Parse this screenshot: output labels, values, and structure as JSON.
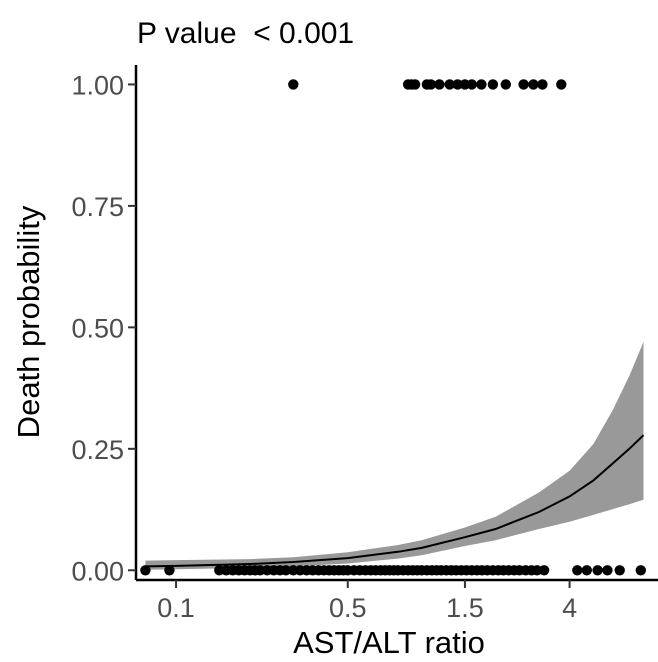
{
  "chart_data": {
    "type": "scatter",
    "title": "P value  < 0.001",
    "xlabel": "AST/ALT ratio",
    "ylabel": "Death probability",
    "x_scale": "log",
    "xlim": [
      0.07,
      8.5
    ],
    "ylim": [
      -0.02,
      1.04
    ],
    "x_ticks": [
      {
        "value": 0.1,
        "label": "0.1"
      },
      {
        "value": 0.5,
        "label": "0.5"
      },
      {
        "value": 1.5,
        "label": "1.5"
      },
      {
        "value": 4,
        "label": "4"
      }
    ],
    "y_ticks": [
      {
        "value": 0.0,
        "label": "0.00"
      },
      {
        "value": 0.25,
        "label": "0.25"
      },
      {
        "value": 0.5,
        "label": "0.50"
      },
      {
        "value": 0.75,
        "label": "0.75"
      },
      {
        "value": 1.0,
        "label": "1.00"
      }
    ],
    "grid": false,
    "points": {
      "y1": [
        0.3,
        0.88,
        0.91,
        0.94,
        1.05,
        1.09,
        1.18,
        1.3,
        1.4,
        1.5,
        1.6,
        1.75,
        1.95,
        2.2,
        2.6,
        2.85,
        3.1,
        3.7
      ],
      "y0": [
        0.075,
        0.094,
        0.15,
        0.16,
        0.17,
        0.18,
        0.19,
        0.2,
        0.21,
        0.22,
        0.235,
        0.25,
        0.265,
        0.28,
        0.3,
        0.32,
        0.34,
        0.36,
        0.38,
        0.4,
        0.42,
        0.44,
        0.46,
        0.48,
        0.5,
        0.53,
        0.56,
        0.59,
        0.62,
        0.65,
        0.68,
        0.71,
        0.74,
        0.77,
        0.8,
        0.84,
        0.88,
        0.92,
        0.96,
        1.0,
        1.05,
        1.1,
        1.15,
        1.2,
        1.26,
        1.32,
        1.38,
        1.45,
        1.52,
        1.6,
        1.68,
        1.76,
        1.85,
        1.95,
        2.05,
        2.15,
        2.26,
        2.38,
        2.5,
        2.65,
        2.8,
        2.95,
        3.15,
        4.3,
        4.7,
        5.2,
        5.7,
        6.4,
        7.8
      ]
    },
    "fit": {
      "x": [
        0.075,
        0.1,
        0.2,
        0.3,
        0.5,
        0.8,
        1.0,
        1.5,
        2.0,
        3.0,
        4.0,
        5.0,
        6.0,
        7.0,
        8.0
      ],
      "y": [
        0.008,
        0.009,
        0.013,
        0.017,
        0.025,
        0.038,
        0.046,
        0.068,
        0.085,
        0.12,
        0.152,
        0.185,
        0.22,
        0.25,
        0.278
      ],
      "lower": [
        0.001,
        0.002,
        0.005,
        0.008,
        0.014,
        0.024,
        0.031,
        0.05,
        0.062,
        0.085,
        0.1,
        0.114,
        0.126,
        0.136,
        0.145
      ],
      "upper": [
        0.02,
        0.021,
        0.023,
        0.027,
        0.037,
        0.052,
        0.062,
        0.088,
        0.11,
        0.16,
        0.205,
        0.26,
        0.33,
        0.4,
        0.47
      ]
    },
    "colors": {
      "points": "#000000",
      "line": "#000000",
      "band": "#999999"
    }
  }
}
